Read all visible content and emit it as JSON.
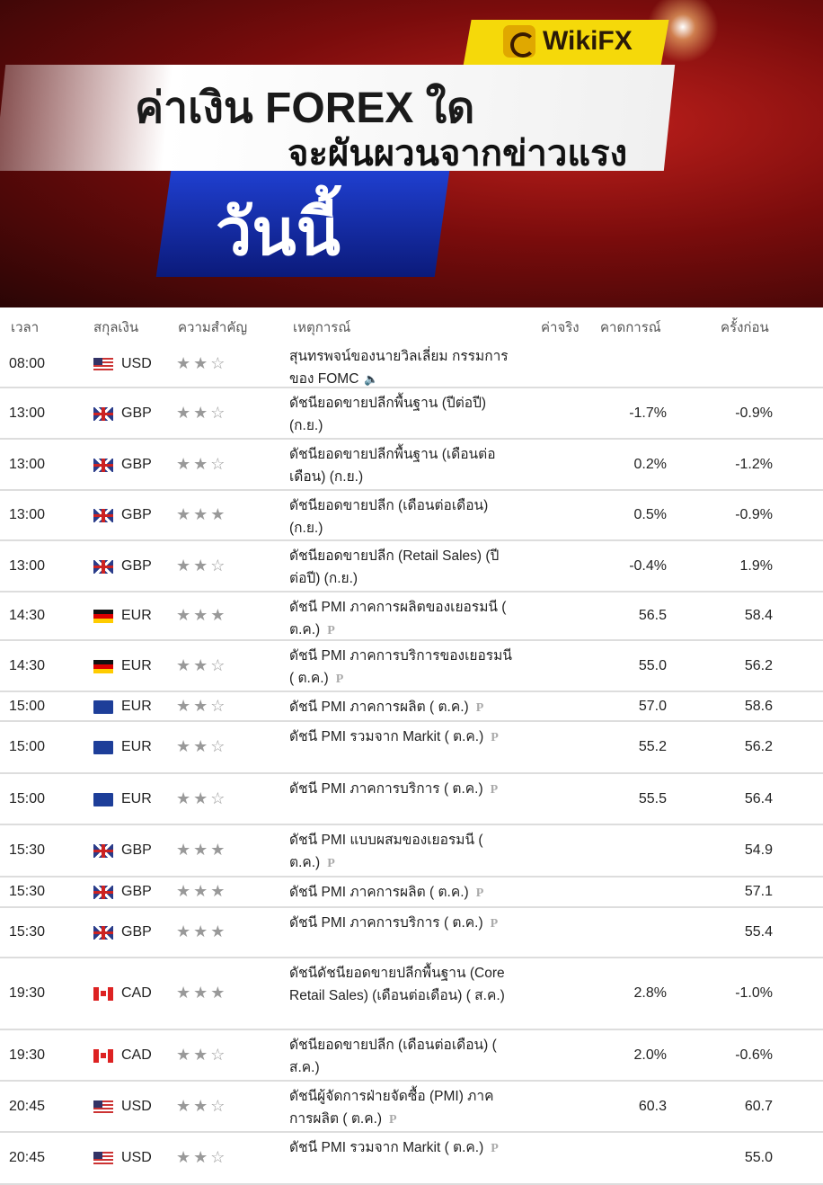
{
  "banner": {
    "logo": "WikiFX",
    "title_line1": "ค่าเงิน FOREX ใด",
    "title_line2": "จะผันผวนจากข่าวแรง",
    "title_line3": "วันนี้"
  },
  "table": {
    "headers": {
      "time": "เวลา",
      "currency": "สกุลเงิน",
      "importance": "ความสำคัญ",
      "event": "เหตุการณ์",
      "actual": "ค่าจริง",
      "forecast": "คาดการณ์",
      "previous": "ครั้งก่อน"
    },
    "rows": [
      {
        "time": "08:00",
        "flag": "us",
        "currency": "USD",
        "stars": 2,
        "event": "สุนทรพจน์ของนายวิลเลี่ยม กรรมการของ FOMC",
        "icon": "speaker-icon",
        "forecast": "",
        "previous": ""
      },
      {
        "time": "13:00",
        "flag": "gb",
        "currency": "GBP",
        "stars": 2,
        "event": "ดัชนียอดขายปลีกพื้นฐาน (ปีต่อปี) (ก.ย.)",
        "icon": "",
        "forecast": "-1.7%",
        "previous": "-0.9%"
      },
      {
        "time": "13:00",
        "flag": "gb",
        "currency": "GBP",
        "stars": 2,
        "event": "ดัชนียอดขายปลีกพื้นฐาน (เดือนต่อเดือน) (ก.ย.)",
        "icon": "",
        "forecast": "0.2%",
        "previous": "-1.2%"
      },
      {
        "time": "13:00",
        "flag": "gb",
        "currency": "GBP",
        "stars": 3,
        "event": "ดัชนียอดขายปลีก (เดือนต่อเดือน) (ก.ย.)",
        "icon": "",
        "forecast": "0.5%",
        "previous": "-0.9%"
      },
      {
        "time": "13:00",
        "flag": "gb",
        "currency": "GBP",
        "stars": 2,
        "event": "ดัชนียอดขายปลีก (Retail Sales) (ปีต่อปี) (ก.ย.)",
        "icon": "",
        "forecast": "-0.4%",
        "previous": "1.9%"
      },
      {
        "time": "14:30",
        "flag": "de",
        "currency": "EUR",
        "stars": 3,
        "event": "ดัชนี PMI ภาคการผลิตของเยอรมนี ( ต.ค.)",
        "icon": "P",
        "forecast": "56.5",
        "previous": "58.4"
      },
      {
        "time": "14:30",
        "flag": "de",
        "currency": "EUR",
        "stars": 2,
        "event": "ดัชนี PMI ภาคการบริการของเยอรมนี ( ต.ค.)",
        "icon": "P",
        "forecast": "55.0",
        "previous": "56.2"
      },
      {
        "time": "15:00",
        "flag": "eu",
        "currency": "EUR",
        "stars": 2,
        "event": "ดัชนี PMI ภาคการผลิต ( ต.ค.)",
        "icon": "P",
        "forecast": "57.0",
        "previous": "58.6"
      },
      {
        "time": "15:00",
        "flag": "eu",
        "currency": "EUR",
        "stars": 2,
        "event": "ดัชนี PMI รวมจาก Markit ( ต.ค.)",
        "icon": "P",
        "forecast": "55.2",
        "previous": "56.2"
      },
      {
        "time": "15:00",
        "flag": "eu",
        "currency": "EUR",
        "stars": 2,
        "event": "ดัชนี PMI ภาคการบริการ ( ต.ค.)",
        "icon": "P",
        "forecast": "55.5",
        "previous": "56.4"
      },
      {
        "time": "15:30",
        "flag": "gb",
        "currency": "GBP",
        "stars": 3,
        "event": "ดัชนี PMI แบบผสมของเยอรมนี ( ต.ค.)",
        "icon": "P",
        "forecast": "",
        "previous": "54.9"
      },
      {
        "time": "15:30",
        "flag": "gb",
        "currency": "GBP",
        "stars": 3,
        "event": "ดัชนี PMI ภาคการผลิต ( ต.ค.)",
        "icon": "P",
        "forecast": "",
        "previous": "57.1"
      },
      {
        "time": "15:30",
        "flag": "gb",
        "currency": "GBP",
        "stars": 3,
        "event": "ดัชนี PMI ภาคการบริการ ( ต.ค.)",
        "icon": "P",
        "forecast": "",
        "previous": "55.4"
      },
      {
        "time": "19:30",
        "flag": "ca",
        "currency": "CAD",
        "stars": 3,
        "event": "ดัชนีดัชนียอดขายปลีกพื้นฐาน (Core Retail Sales) (เดือนต่อเดือน) ( ส.ค.)",
        "icon": "",
        "forecast": "2.8%",
        "previous": "-1.0%"
      },
      {
        "time": "19:30",
        "flag": "ca",
        "currency": "CAD",
        "stars": 2,
        "event": "ดัชนียอดขายปลีก (เดือนต่อเดือน) ( ส.ค.)",
        "icon": "",
        "forecast": "2.0%",
        "previous": "-0.6%"
      },
      {
        "time": "20:45",
        "flag": "us",
        "currency": "USD",
        "stars": 2,
        "event": "ดัชนีผู้จัดการฝ่ายจัดซื้อ (PMI) ภาคการผลิต ( ต.ค.)",
        "icon": "P",
        "forecast": "60.3",
        "previous": "60.7"
      },
      {
        "time": "20:45",
        "flag": "us",
        "currency": "USD",
        "stars": 2,
        "event": "ดัชนี PMI รวมจาก Markit ( ต.ค.)",
        "icon": "P",
        "forecast": "",
        "previous": "55.0"
      }
    ]
  }
}
